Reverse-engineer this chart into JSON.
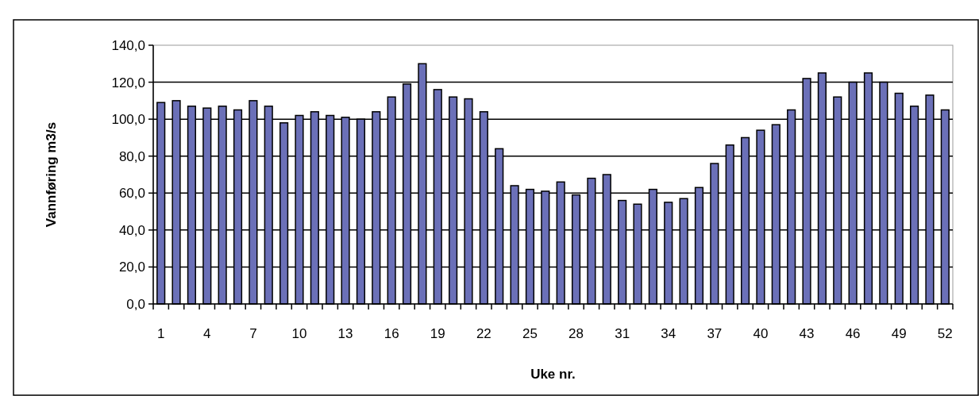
{
  "chart_data": {
    "type": "bar",
    "xlabel": "Uke nr.",
    "ylabel": "Vannføring m3/s",
    "categories": [
      "1",
      null,
      null,
      "4",
      null,
      null,
      "7",
      null,
      null,
      "10",
      null,
      null,
      "13",
      null,
      null,
      "16",
      null,
      null,
      "19",
      null,
      null,
      "22",
      null,
      null,
      "25",
      null,
      null,
      "28",
      null,
      null,
      "31",
      null,
      null,
      "34",
      null,
      null,
      "37",
      null,
      null,
      "40",
      null,
      null,
      "43",
      null,
      null,
      "46",
      null,
      null,
      "49",
      null,
      null,
      "52"
    ],
    "values": [
      109,
      110,
      107,
      106,
      107,
      105,
      110,
      107,
      98,
      102,
      104,
      102,
      101,
      100,
      104,
      112,
      119,
      130,
      116,
      112,
      111,
      104,
      84,
      64,
      62,
      61,
      66,
      59,
      68,
      70,
      56,
      54,
      62,
      55,
      57,
      63,
      76,
      86,
      90,
      94,
      97,
      105,
      122,
      125,
      112,
      120,
      125,
      120,
      114,
      107,
      113,
      105
    ],
    "color": "#6b70b8",
    "ylim": [
      0,
      140
    ],
    "yticks": [
      {
        "value": 0,
        "label": "0,0"
      },
      {
        "value": 20,
        "label": "20,0"
      },
      {
        "value": 40,
        "label": "40,0"
      },
      {
        "value": 60,
        "label": "60,0"
      },
      {
        "value": 80,
        "label": "80,0"
      },
      {
        "value": 100,
        "label": "100,0"
      },
      {
        "value": 120,
        "label": "120,0"
      },
      {
        "value": 140,
        "label": "140,0"
      }
    ],
    "grid": "y"
  }
}
